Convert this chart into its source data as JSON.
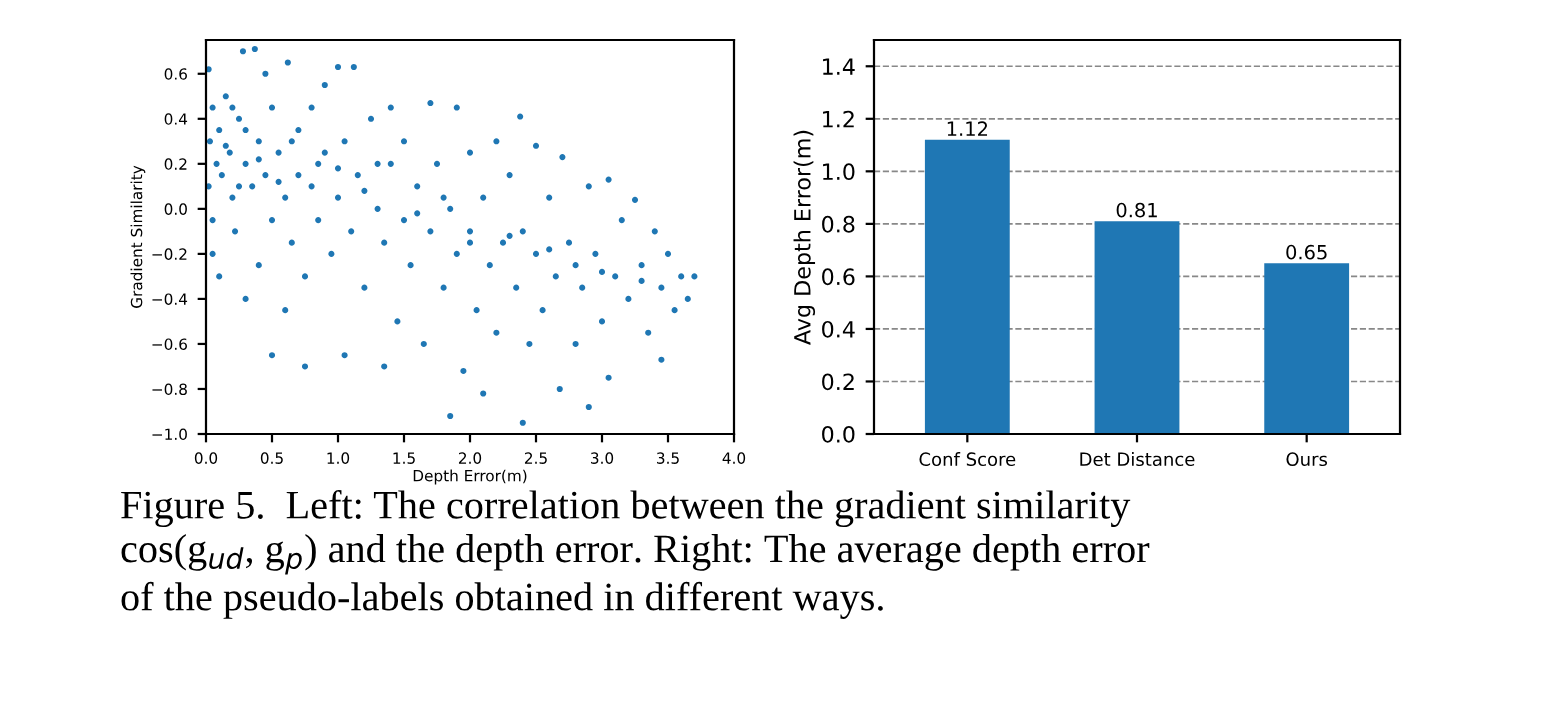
{
  "chart_data": [
    {
      "type": "scatter",
      "xlabel": "Depth Error(m)",
      "ylabel": "Gradient Similarity",
      "xlim": [
        0,
        4
      ],
      "ylim": [
        -1,
        0.75
      ],
      "grid": false,
      "legend": false,
      "marker": "circle",
      "xticks": [
        {
          "value": 0,
          "label": "0.0"
        },
        {
          "value": 0.5,
          "label": "0.5"
        },
        {
          "value": 1,
          "label": "1.0"
        },
        {
          "value": 1.5,
          "label": "1.5"
        },
        {
          "value": 2,
          "label": "2.0"
        },
        {
          "value": 2.5,
          "label": "2.5"
        },
        {
          "value": 3,
          "label": "3.0"
        },
        {
          "value": 3.5,
          "label": "3.5"
        },
        {
          "value": 4,
          "label": "4.0"
        }
      ],
      "yticks": [
        {
          "value": -1,
          "label": "−1.0"
        },
        {
          "value": -0.8,
          "label": "−0.8"
        },
        {
          "value": -0.6,
          "label": "−0.6"
        },
        {
          "value": -0.4,
          "label": "−0.4"
        },
        {
          "value": -0.2,
          "label": "−0.2"
        },
        {
          "value": 0,
          "label": "0.0"
        },
        {
          "value": 0.2,
          "label": "0.2"
        },
        {
          "value": 0.4,
          "label": "0.4"
        },
        {
          "value": 0.6,
          "label": "0.6"
        }
      ],
      "annotations": [
        "Figure 5.  Left: The correlation between the gradient similarity\ncos(g$_{ud}$, g$_{p}$) and the depth error. Right: The average depth error\nof the pseudo-labels obtained in different ways."
      ],
      "series": [
        {
          "color": "#1f77b4",
          "x": [
            0.02,
            0.05,
            0.03,
            0.08,
            0.02,
            0.05,
            0.1,
            0.12,
            0.05,
            0.15,
            0.18,
            0.2,
            0.22,
            0.25,
            0.28,
            0.3,
            0.3,
            0.35,
            0.37,
            0.4,
            0.4,
            0.45,
            0.45,
            0.5,
            0.5,
            0.5,
            0.55,
            0.6,
            0.62,
            0.65,
            0.7,
            0.7,
            0.75,
            0.75,
            0.8,
            0.8,
            0.85,
            0.9,
            0.9,
            0.95,
            1.0,
            1.0,
            1.05,
            1.05,
            1.1,
            1.12,
            1.15,
            1.2,
            1.25,
            1.3,
            1.35,
            1.35,
            1.4,
            1.4,
            1.45,
            1.5,
            1.5,
            1.55,
            1.6,
            1.65,
            1.7,
            1.7,
            1.75,
            1.8,
            1.85,
            1.85,
            1.9,
            1.9,
            1.95,
            2.0,
            2.0,
            2.05,
            2.1,
            2.1,
            2.15,
            2.2,
            2.2,
            2.25,
            2.3,
            2.35,
            2.38,
            2.4,
            2.4,
            2.45,
            2.5,
            2.5,
            2.55,
            2.6,
            2.65,
            2.68,
            2.7,
            2.75,
            2.8,
            2.85,
            2.9,
            2.9,
            2.95,
            3.0,
            3.05,
            3.05,
            3.1,
            3.15,
            3.2,
            3.25,
            3.3,
            3.35,
            3.4,
            3.45,
            3.45,
            3.5,
            3.55,
            3.6,
            3.65,
            3.7,
            0.1,
            0.2,
            0.6,
            0.3,
            0.15,
            0.25,
            0.4,
            0.55,
            0.65,
            0.85,
            1.0,
            1.2,
            1.3,
            1.6,
            1.8,
            2.0,
            2.3,
            2.6,
            2.8,
            3.0,
            3.3
          ],
          "values": [
            0.62,
            0.45,
            0.3,
            0.2,
            0.1,
            -0.05,
            0.35,
            0.15,
            -0.2,
            0.5,
            0.25,
            0.05,
            -0.1,
            0.4,
            0.7,
            0.2,
            -0.4,
            0.1,
            0.71,
            0.3,
            -0.25,
            0.6,
            0.15,
            -0.05,
            0.45,
            -0.65,
            0.25,
            0.05,
            0.65,
            -0.15,
            0.35,
            0.15,
            -0.7,
            -0.3,
            0.45,
            0.1,
            -0.05,
            0.55,
            0.25,
            -0.2,
            0.63,
            0.05,
            -0.65,
            0.3,
            -0.1,
            0.63,
            0.15,
            -0.35,
            0.4,
            0.0,
            -0.7,
            -0.15,
            0.45,
            0.2,
            -0.5,
            -0.05,
            0.3,
            -0.25,
            0.1,
            -0.6,
            0.47,
            -0.1,
            0.2,
            -0.35,
            -0.92,
            0.0,
            0.45,
            -0.2,
            -0.72,
            0.25,
            -0.1,
            -0.45,
            -0.82,
            0.05,
            -0.25,
            0.3,
            -0.55,
            -0.15,
            0.15,
            -0.35,
            0.41,
            -0.95,
            -0.1,
            -0.6,
            0.28,
            -0.2,
            -0.45,
            0.05,
            -0.3,
            -0.8,
            0.23,
            -0.15,
            -0.6,
            -0.35,
            -0.88,
            0.1,
            -0.2,
            -0.5,
            0.13,
            -0.75,
            -0.3,
            -0.05,
            -0.4,
            0.04,
            -0.25,
            -0.55,
            -0.1,
            -0.35,
            -0.67,
            -0.2,
            -0.45,
            -0.3,
            -0.4,
            -0.3,
            -0.3,
            0.45,
            -0.45,
            0.35,
            0.28,
            0.1,
            0.22,
            0.12,
            0.3,
            0.2,
            0.18,
            0.08,
            0.2,
            -0.02,
            0.05,
            -0.15,
            -0.12,
            -0.18,
            -0.25,
            -0.28,
            -0.32
          ]
        }
      ]
    },
    {
      "type": "bar",
      "ylabel": "Avg Depth Error(m)",
      "categories": [
        "Conf Score",
        "Det Distance",
        "Ours"
      ],
      "values": [
        1.12,
        0.81,
        0.65
      ],
      "color": "#1f77b4",
      "data_labels": true,
      "grid": "y",
      "legend": false,
      "ylim": [
        0,
        1.5
      ],
      "yticks": [
        {
          "value": 0,
          "label": "0.0"
        },
        {
          "value": 0.2,
          "label": "0.2"
        },
        {
          "value": 0.4,
          "label": "0.4"
        },
        {
          "value": 0.6,
          "label": "0.6"
        },
        {
          "value": 0.8,
          "label": "0.8"
        },
        {
          "value": 1.0,
          "label": "1.0"
        },
        {
          "value": 1.2,
          "label": "1.2"
        },
        {
          "value": 1.4,
          "label": "1.4"
        }
      ]
    }
  ]
}
